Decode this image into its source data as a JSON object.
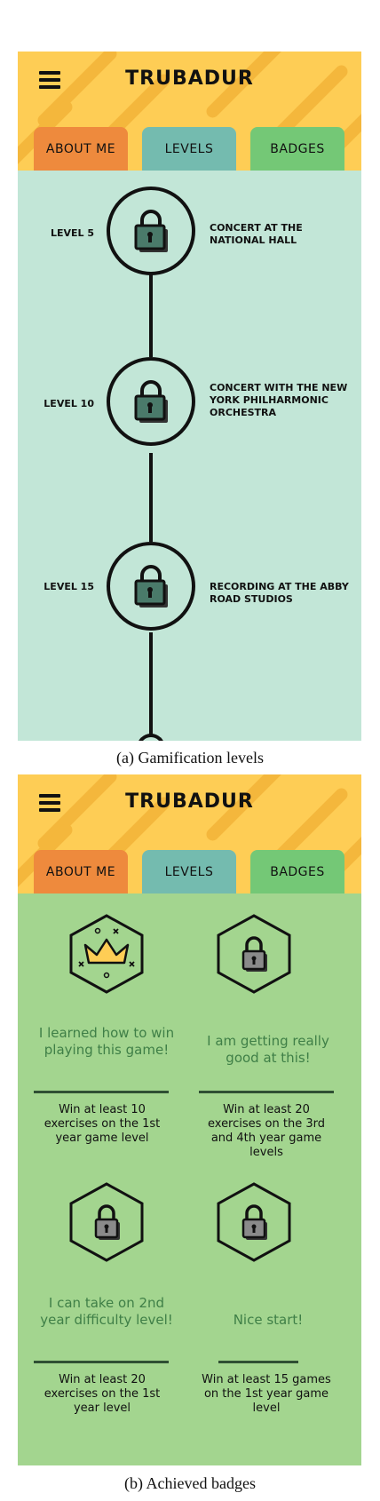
{
  "screens": [
    {
      "header": {
        "title": "TRUBADUR"
      },
      "tabs": [
        {
          "label": "ABOUT ME"
        },
        {
          "label": "LEVELS"
        },
        {
          "label": "BADGES"
        }
      ],
      "levels": [
        {
          "label": "LEVEL 5",
          "description": "CONCERT AT THE NATIONAL HALL"
        },
        {
          "label": "LEVEL 10",
          "description": "CONCERT WITH THE NEW YORK PHILHARMONIC ORCHESTRA"
        },
        {
          "label": "LEVEL 15",
          "description": "RECORDING AT THE ABBY ROAD STUDIOS"
        }
      ],
      "caption": "(a) Gamification levels"
    },
    {
      "header": {
        "title": "TRUBADUR"
      },
      "tabs": [
        {
          "label": "ABOUT ME"
        },
        {
          "label": "LEVELS"
        },
        {
          "label": "BADGES"
        }
      ],
      "badges": [
        {
          "title": "I learned how to win playing this game!",
          "requirement": "Win at least 10 exercises on the 1st year game level",
          "icon": "crown-icon"
        },
        {
          "title": "I am getting really good at this!",
          "requirement": "Win at least 20 exercises on the 3rd and 4th year game levels",
          "icon": "lock-icon"
        },
        {
          "title": "I can take on 2nd year difficulty level!",
          "requirement": "Win at least 20 exercises on the 1st year level",
          "icon": "lock-icon"
        },
        {
          "title": "Nice start!",
          "requirement": "Win at least 15 games on the 1st year game level",
          "icon": "lock-icon"
        }
      ],
      "caption": "(b) Achieved badges"
    }
  ],
  "colors": {
    "header": "#fecd55",
    "header_stripe": "#f4b73c",
    "tab_about": "#ee8a3d",
    "tab_levels": "#74bbaf",
    "tab_badges": "#74c876",
    "levels_bg": "#c2e6d7",
    "badges_bg": "#a3d58f",
    "badge_title": "#3f7f47"
  }
}
